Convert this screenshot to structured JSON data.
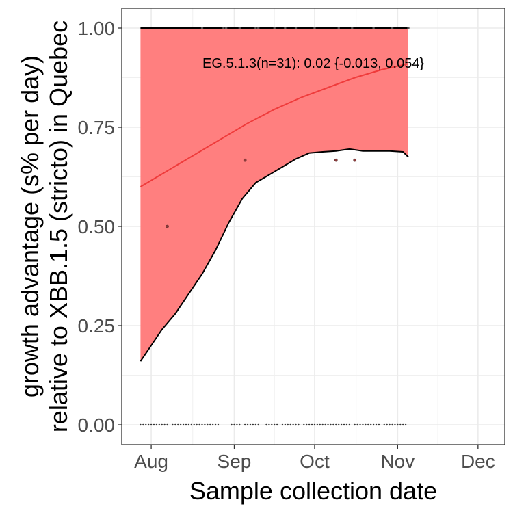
{
  "chart_data": {
    "type": "line",
    "xlabel": "Sample collection date",
    "ylabel_lines": [
      "growth advantage (s% per day)",
      "relative to XBB.1.5 (stricto) in Quebec"
    ],
    "x_ticks": [
      "2023-08-01",
      "2023-09-01",
      "2023-10-01",
      "2023-11-01",
      "2023-12-01"
    ],
    "x_tick_labels": [
      "Aug",
      "Sep",
      "Oct",
      "Nov",
      "Dec"
    ],
    "xlim": [
      "2023-07-21",
      "2023-12-11"
    ],
    "y_ticks": [
      0.0,
      0.25,
      0.5,
      0.75,
      1.0
    ],
    "y_tick_labels": [
      "0.00",
      "0.25",
      "0.50",
      "0.75",
      "1.00"
    ],
    "ylim": [
      -0.05,
      1.05
    ],
    "grid": true,
    "annotation": "EG.5.1.3(n=31): 0.02 {-0.013, 0.054}",
    "band_color": "#ff7f7f",
    "fit_color": "#ef3b3b",
    "fit": {
      "x": [
        "2023-07-28",
        "2023-08-07",
        "2023-08-17",
        "2023-08-27",
        "2023-09-06",
        "2023-09-16",
        "2023-09-26",
        "2023-10-06",
        "2023-10-16",
        "2023-10-26",
        "2023-11-05"
      ],
      "y": [
        0.6,
        0.64,
        0.68,
        0.72,
        0.76,
        0.795,
        0.825,
        0.85,
        0.875,
        0.895,
        0.91
      ]
    },
    "band": {
      "x": [
        "2023-07-28",
        "2023-08-01",
        "2023-08-05",
        "2023-08-10",
        "2023-08-15",
        "2023-08-20",
        "2023-08-25",
        "2023-08-30",
        "2023-09-04",
        "2023-09-09",
        "2023-09-14",
        "2023-09-19",
        "2023-09-24",
        "2023-09-29",
        "2023-10-04",
        "2023-10-09",
        "2023-10-14",
        "2023-10-19",
        "2023-10-24",
        "2023-10-29",
        "2023-11-03",
        "2023-11-05"
      ],
      "lower": [
        0.16,
        0.2,
        0.24,
        0.28,
        0.33,
        0.38,
        0.44,
        0.51,
        0.57,
        0.61,
        0.63,
        0.65,
        0.67,
        0.685,
        0.688,
        0.69,
        0.695,
        0.69,
        0.69,
        0.69,
        0.688,
        0.675
      ],
      "upper": [
        1.0,
        1.0,
        1.0,
        1.0,
        1.0,
        1.0,
        1.0,
        1.0,
        1.0,
        1.0,
        1.0,
        1.0,
        1.0,
        1.0,
        1.0,
        1.0,
        1.0,
        1.0,
        1.0,
        1.0,
        1.0,
        1.0
      ]
    },
    "points_top": {
      "x": [
        "2023-08-20",
        "2023-08-28",
        "2023-08-29",
        "2023-09-03",
        "2023-09-09",
        "2023-09-10",
        "2023-09-16",
        "2023-09-20",
        "2023-09-24",
        "2023-10-01",
        "2023-10-10",
        "2023-10-15",
        "2023-10-23",
        "2023-10-30",
        "2023-11-05"
      ],
      "y": 1.0
    },
    "points_mid": {
      "x": [
        "2023-08-07",
        "2023-09-05",
        "2023-10-09",
        "2023-10-16"
      ],
      "y": [
        0.5,
        0.667,
        0.667,
        0.667
      ]
    },
    "points_bottom": {
      "x": [
        "2023-07-28",
        "2023-07-29",
        "2023-07-30",
        "2023-07-31",
        "2023-08-01",
        "2023-08-02",
        "2023-08-03",
        "2023-08-04",
        "2023-08-05",
        "2023-08-06",
        "2023-08-07",
        "2023-08-09",
        "2023-08-10",
        "2023-08-11",
        "2023-08-12",
        "2023-08-13",
        "2023-08-14",
        "2023-08-15",
        "2023-08-16",
        "2023-08-17",
        "2023-08-18",
        "2023-08-19",
        "2023-08-20",
        "2023-08-21",
        "2023-08-22",
        "2023-08-23",
        "2023-08-24",
        "2023-08-25",
        "2023-08-26",
        "2023-08-31",
        "2023-09-01",
        "2023-09-02",
        "2023-09-03",
        "2023-09-05",
        "2023-09-06",
        "2023-09-07",
        "2023-09-08",
        "2023-09-09",
        "2023-09-10",
        "2023-09-13",
        "2023-09-14",
        "2023-09-15",
        "2023-09-16",
        "2023-09-17",
        "2023-09-19",
        "2023-09-20",
        "2023-09-21",
        "2023-09-22",
        "2023-09-23",
        "2023-09-24",
        "2023-09-25",
        "2023-09-27",
        "2023-09-28",
        "2023-09-29",
        "2023-09-30",
        "2023-10-01",
        "2023-10-02",
        "2023-10-03",
        "2023-10-04",
        "2023-10-05",
        "2023-10-06",
        "2023-10-07",
        "2023-10-08",
        "2023-10-09",
        "2023-10-10",
        "2023-10-11",
        "2023-10-12",
        "2023-10-13",
        "2023-10-14",
        "2023-10-16",
        "2023-10-17",
        "2023-10-18",
        "2023-10-19",
        "2023-10-20",
        "2023-10-21",
        "2023-10-22",
        "2023-10-23",
        "2023-10-24",
        "2023-10-25",
        "2023-10-27",
        "2023-10-28",
        "2023-10-29",
        "2023-10-30",
        "2023-10-31",
        "2023-11-01",
        "2023-11-02",
        "2023-11-03",
        "2023-11-04"
      ],
      "y": 0.0
    }
  }
}
